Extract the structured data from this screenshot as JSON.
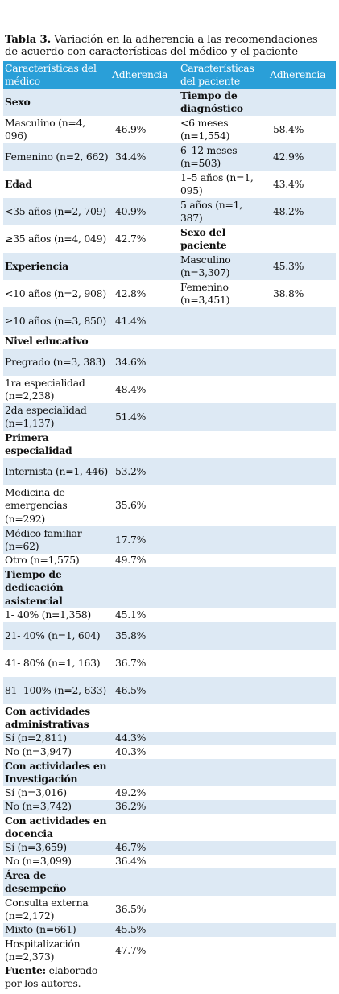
{
  "caption": {
    "label": "Tabla 3.",
    "text": " Variación en la adherencia a las recomendaciones de acuerdo con características del médico y el paciente"
  },
  "headers": [
    "Características del médico",
    "Adherencia",
    "Características del paciente",
    "Adherencia"
  ],
  "rows": [
    {
      "a": "Sexo",
      "ah": true,
      "b": "",
      "c": "Tiempo de diagnóstico",
      "ch": true,
      "d": "",
      "h": 34,
      "s": true
    },
    {
      "a": "Masculino (n=4, 096)",
      "b": "46.9%",
      "c": "<6 meses (n=1,554)",
      "d": "58.4%",
      "h": 34,
      "s": false
    },
    {
      "a": "Femenino (n=2, 662)",
      "b": "34.4%",
      "c": "6–12 meses (n=503)",
      "d": "42.9%",
      "h": 34,
      "s": true
    },
    {
      "a": "Edad",
      "ah": true,
      "b": "",
      "c": "1–5 años (n=1, 095)",
      "d": "43.4%",
      "h": 34,
      "s": false
    },
    {
      "a": "<35 años (n=2, 709)",
      "b": "40.9%",
      "c": "5 años (n=1, 387)",
      "d": "48.2%",
      "h": 34,
      "s": true
    },
    {
      "a": "≥35 años (n=4, 049)",
      "b": "42.7%",
      "c": "Sexo del paciente",
      "ch": true,
      "d": "",
      "h": 34,
      "s": false
    },
    {
      "a": "Experiencia",
      "ah": true,
      "b": "",
      "c": "Masculino (n=3,307)",
      "d": "45.3%",
      "h": 34,
      "s": true
    },
    {
      "a": "<10 años (n=2, 908)",
      "b": "42.8%",
      "c": "Femenino (n=3,451)",
      "d": "38.8%",
      "h": 34,
      "s": false
    },
    {
      "a": "≥10 años (n=3, 850)",
      "b": "41.4%",
      "c": "",
      "d": "",
      "h": 34,
      "s": true
    },
    {
      "a": "Nivel educativo",
      "ah": true,
      "b": "",
      "c": "",
      "d": "",
      "h": 17,
      "s": false
    },
    {
      "a": "Pregrado (n=3, 383)",
      "b": "34.6%",
      "c": "",
      "d": "",
      "h": 34,
      "s": true
    },
    {
      "a": "1ra especialidad (n=2,238)",
      "b": "48.4%",
      "c": "",
      "d": "",
      "h": 34,
      "s": false
    },
    {
      "a": "2da especialidad (n=1,137)",
      "b": "51.4%",
      "c": "",
      "d": "",
      "h": 34,
      "s": true
    },
    {
      "a": "Primera especialidad",
      "ah": true,
      "b": "",
      "c": "",
      "d": "",
      "h": 34,
      "s": false
    },
    {
      "a": "Internista (n=1, 446)",
      "b": "53.2%",
      "c": "",
      "d": "",
      "h": 34,
      "s": true
    },
    {
      "a": "Medicina de emergencias (n=292)",
      "b": "35.6%",
      "c": "",
      "d": "",
      "h": 51,
      "s": false
    },
    {
      "a": "Médico familiar (n=62)",
      "b": "17.7%",
      "c": "",
      "d": "",
      "h": 34,
      "s": true
    },
    {
      "a": "Otro (n=1,575)",
      "b": "49.7%",
      "c": "",
      "d": "",
      "h": 17,
      "s": false
    },
    {
      "a": "Tiempo de dedicación asistencial",
      "ah": true,
      "b": "",
      "c": "",
      "d": "",
      "h": 51,
      "s": true
    },
    {
      "a": "1- 40% (n=1,358)",
      "b": "45.1%",
      "c": "",
      "d": "",
      "h": 17,
      "s": false
    },
    {
      "a": "21- 40% (n=1, 604)",
      "b": "35.8%",
      "c": "",
      "d": "",
      "h": 34,
      "s": true
    },
    {
      "a": "41- 80% (n=1, 163)",
      "b": "36.7%",
      "c": "",
      "d": "",
      "h": 34,
      "s": false
    },
    {
      "a": "81- 100% (n=2, 633)",
      "b": "46.5%",
      "c": "",
      "d": "",
      "h": 34,
      "s": true
    },
    {
      "a": "Con actividades administrativas",
      "ah": true,
      "b": "",
      "c": "",
      "d": "",
      "h": 34,
      "s": false
    },
    {
      "a": "Sí (n=2,811)",
      "b": "44.3%",
      "c": "",
      "d": "",
      "h": 17,
      "s": true
    },
    {
      "a": "No (n=3,947)",
      "b": "40.3%",
      "c": "",
      "d": "",
      "h": 17,
      "s": false
    },
    {
      "a": "Con actividades en Investigación",
      "ah": true,
      "b": "",
      "c": "",
      "d": "",
      "h": 34,
      "s": true
    },
    {
      "a": "Sí (n=3,016)",
      "b": "49.2%",
      "c": "",
      "d": "",
      "h": 17,
      "s": false
    },
    {
      "a": "No (n=3,742)",
      "b": "36.2%",
      "c": "",
      "d": "",
      "h": 17,
      "s": true
    },
    {
      "a": "Con actividades en docencia",
      "ah": true,
      "b": "",
      "c": "",
      "d": "",
      "h": 34,
      "s": false
    },
    {
      "a": "Sí (n=3,659)",
      "b": "46.7%",
      "c": "",
      "d": "",
      "h": 17,
      "s": true
    },
    {
      "a": "No (n=3,099)",
      "b": "36.4%",
      "c": "",
      "d": "",
      "h": 17,
      "s": false
    },
    {
      "a": "Área de desempeño",
      "ah": true,
      "b": "",
      "c": "",
      "d": "",
      "h": 34,
      "s": true
    },
    {
      "a": "Consulta externa (n=2,172)",
      "b": "36.5%",
      "c": "",
      "d": "",
      "h": 34,
      "s": false
    },
    {
      "a": "Mixto (n=661)",
      "b": "45.5%",
      "c": "",
      "d": "",
      "h": 17,
      "s": true
    },
    {
      "a": "Hospitalización (n=2,373)",
      "b": "47.7%",
      "c": "",
      "d": "",
      "h": 34,
      "s": false
    }
  ],
  "footer": {
    "label": "Fuente:",
    "text": " elaborado por los autores."
  }
}
